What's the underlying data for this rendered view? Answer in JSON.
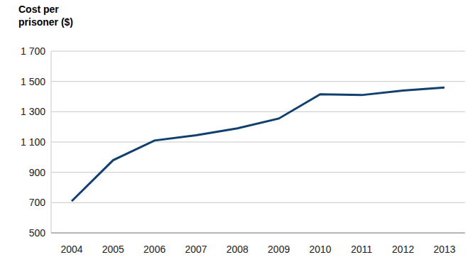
{
  "chart_data": {
    "type": "line",
    "y_label": "Cost per prisoner ($)",
    "categories": [
      "2004",
      "2005",
      "2006",
      "2007",
      "2008",
      "2009",
      "2010",
      "2011",
      "2012",
      "2013"
    ],
    "values": [
      710,
      980,
      1110,
      1145,
      1190,
      1255,
      1415,
      1410,
      1440,
      1460
    ],
    "color": "#12406e",
    "ylim": [
      500,
      1700
    ],
    "yticks": [
      500,
      700,
      900,
      {
        "value": 1100,
        "label": "1 100"
      },
      {
        "value": 1300,
        "label": "1 300"
      },
      {
        "value": 1500,
        "label": "1 500"
      },
      {
        "value": 1700,
        "label": "1 700"
      }
    ],
    "grid": true
  }
}
